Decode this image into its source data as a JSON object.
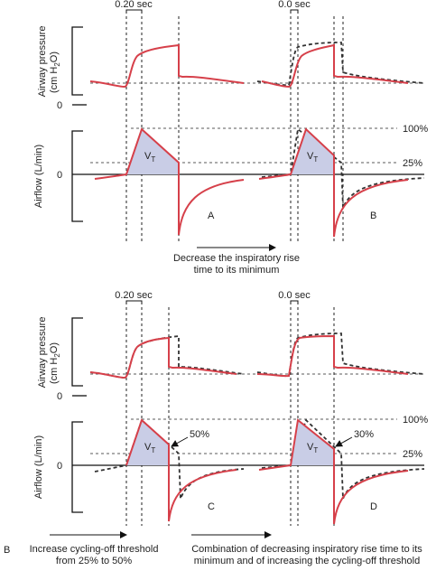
{
  "figure_label": "B",
  "panels": [
    {
      "time_labels": [
        "0.20 sec",
        "0.0 sec"
      ],
      "pressure_label": {
        "line1": "Airway pressure",
        "line2": "(cm H",
        "sub": "2",
        "end": "O)"
      },
      "pressure_zero": "0",
      "flow_label": "Airflow (L/min)",
      "flow_zero": "0",
      "threshold_labels": [
        "100%",
        "25%"
      ],
      "vt_labels": [
        {
          "main": "V",
          "sub": "T"
        },
        {
          "main": "V",
          "sub": "T"
        }
      ],
      "letters": [
        "A",
        "B"
      ],
      "caption": [
        "Decrease the inspiratory rise",
        "time to its minimum"
      ]
    },
    {
      "time_labels": [
        "0.20 sec",
        "0.0 sec"
      ],
      "pressure_label": {
        "line1": "Airway pressure",
        "line2": "(cm H",
        "sub": "2",
        "end": "O)"
      },
      "pressure_zero": "0",
      "flow_label": "Airflow (L/min)",
      "flow_zero": "0",
      "threshold_labels": [
        "100%",
        "25%"
      ],
      "cycle_labels": [
        "50%",
        "30%"
      ],
      "vt_labels": [
        {
          "main": "V",
          "sub": "T"
        },
        {
          "main": "V",
          "sub": "T"
        }
      ],
      "letters": [
        "C",
        "D"
      ],
      "captions": [
        [
          "Increase cycling-off threshold",
          "from 25% to 50%"
        ],
        [
          "Combination of decreasing inspiratory rise time to its",
          "minimum and of increasing the cycling-off threshold"
        ]
      ]
    }
  ]
}
